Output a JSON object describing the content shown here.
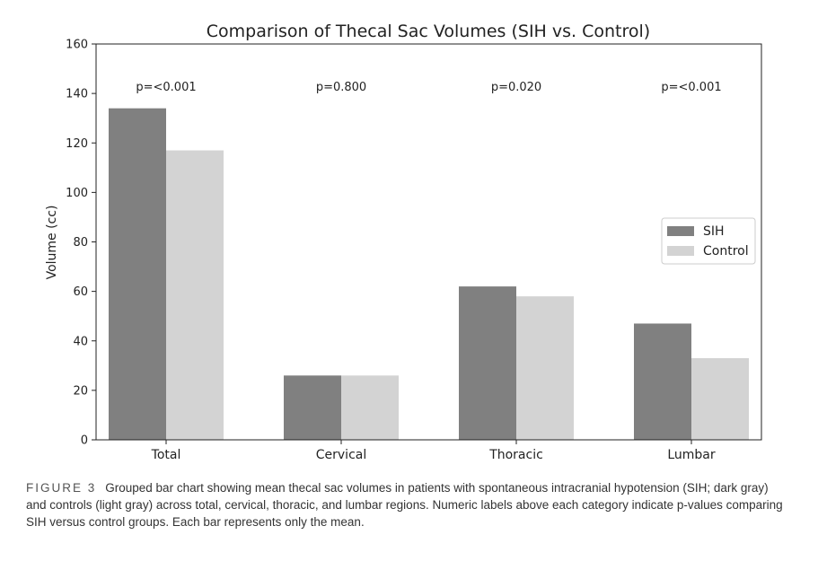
{
  "chart_data": {
    "type": "bar",
    "title": "Comparison of Thecal Sac Volumes (SIH vs. Control)",
    "xlabel": "",
    "ylabel": "Volume (cc)",
    "ylim": [
      0,
      160
    ],
    "yticks": [
      0,
      20,
      40,
      60,
      80,
      100,
      120,
      140,
      160
    ],
    "categories": [
      "Total",
      "Cervical",
      "Thoracic",
      "Lumbar"
    ],
    "series": [
      {
        "name": "SIH",
        "color": "#808080",
        "values": [
          134,
          26,
          62,
          47
        ]
      },
      {
        "name": "Control",
        "color": "#d3d3d3",
        "values": [
          117,
          26,
          58,
          33
        ]
      }
    ],
    "annotations": [
      "p=<0.001",
      "p=0.800",
      "p=0.020",
      "p=<0.001"
    ],
    "legend_position": "right",
    "grid": false
  },
  "caption": {
    "label": "FIGURE 3",
    "text": "Grouped bar chart showing mean thecal sac volumes in patients with spontaneous intracranial hypotension (SIH; dark gray) and controls (light gray) across total, cervical, thoracic, and lumbar regions. Numeric labels above each category indicate p-values comparing SIH versus control groups. Each bar represents only the mean."
  }
}
